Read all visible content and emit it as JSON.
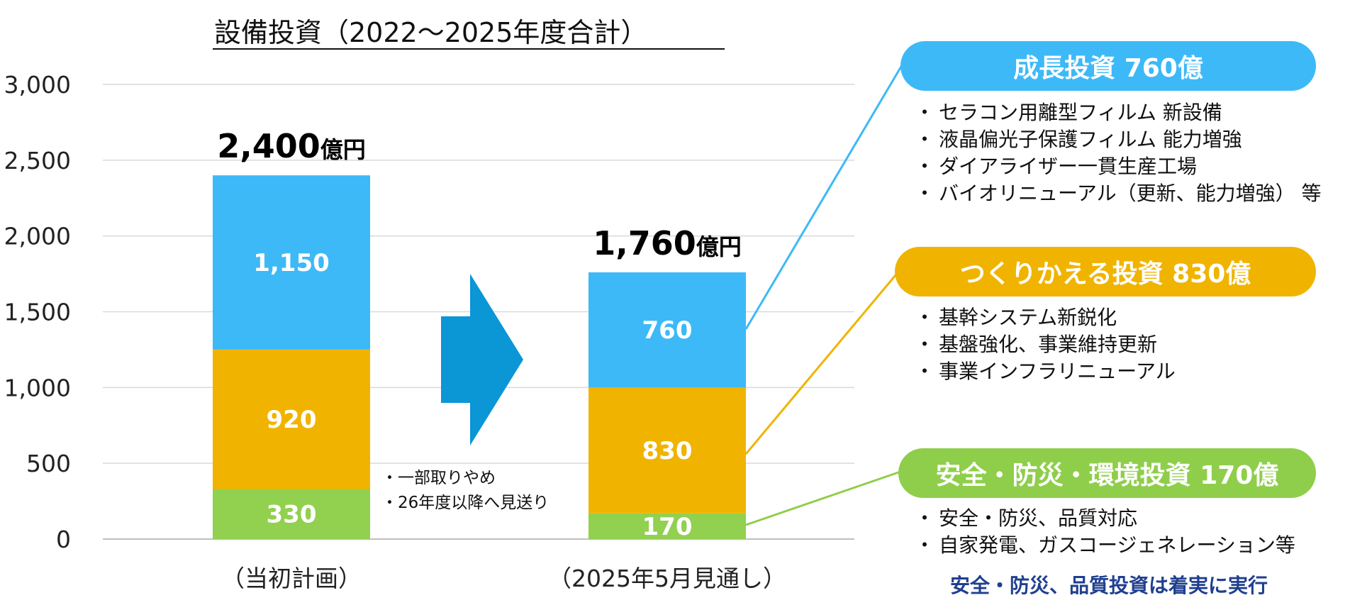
{
  "title": "設備投資（2022～2025年度合計）",
  "chart_data": {
    "type": "bar",
    "stacked": true,
    "categories": [
      "（当初計画）",
      "（2025年5月見通し）"
    ],
    "ylim": [
      0,
      3000
    ],
    "yticks": [
      "0",
      "500",
      "1,000",
      "1,500",
      "2,000",
      "2,500",
      "3,000"
    ],
    "series": [
      {
        "name": "安全・防災・環境投資",
        "color": "#92d050",
        "values": [
          330,
          170
        ],
        "labels": [
          "330",
          "170"
        ]
      },
      {
        "name": "つくりかえる投資",
        "color": "#f0b400",
        "values": [
          920,
          830
        ],
        "labels": [
          "920",
          "830"
        ]
      },
      {
        "name": "成長投資",
        "color": "#3db9f7",
        "values": [
          1150,
          760
        ],
        "labels": [
          "1,150",
          "760"
        ]
      }
    ],
    "totals": [
      {
        "number": "2,400",
        "unit": "億円"
      },
      {
        "number": "1,760",
        "unit": "億円"
      }
    ],
    "grid": true
  },
  "arrow_color": "#0b96d6",
  "notes": [
    "一部取りやめ",
    "26年度以降へ見送り"
  ],
  "categories_info": {
    "growth": {
      "label": "成長投資 760億",
      "color": "#3db9f7",
      "items": [
        "セラコン用離型フィルム 新設備",
        "液晶偏光子保護フィルム 能力増強",
        "ダイアライザー一貫生産工場",
        "バイオリニューアル（更新、能力増強） 等"
      ]
    },
    "rebuild": {
      "label": "つくりかえる投資 830億",
      "color": "#f0b400",
      "items": [
        "基幹システム新鋭化",
        "基盤強化、事業維持更新",
        "事業インフラリニューアル"
      ]
    },
    "safety": {
      "label": "安全・防災・環境投資 170億",
      "color": "#8fce4a",
      "items": [
        "安全・防災、品質対応",
        "自家発電、ガスコージェネレーション等"
      ]
    }
  },
  "highlight": "安全・防災、品質投資は着実に実行"
}
